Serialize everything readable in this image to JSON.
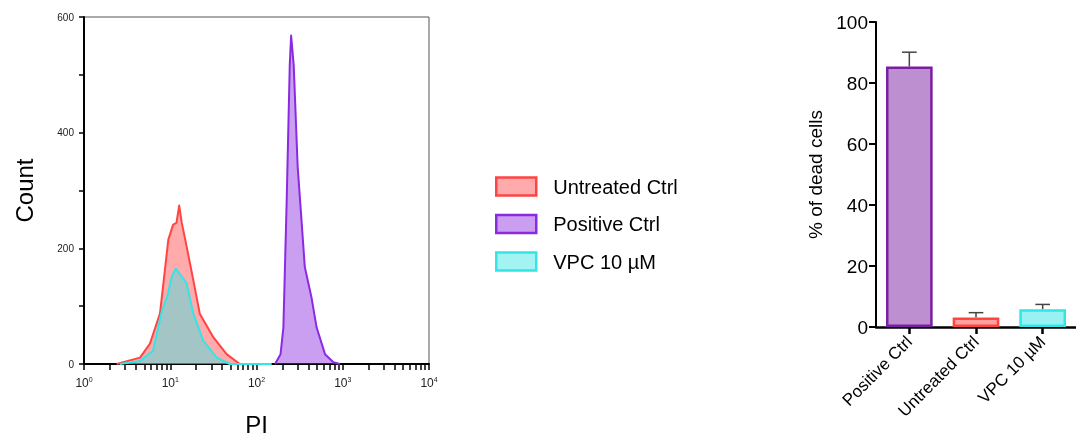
{
  "chart_data": [
    {
      "type": "area",
      "xlabel": "PI",
      "ylabel": "Count",
      "log": "x",
      "xlim": [
        1,
        10000
      ],
      "ylim": [
        0,
        600
      ],
      "xticks": [
        {
          "value": 1,
          "label": "10$^{0}$"
        },
        {
          "value": 2,
          "label": null
        },
        {
          "value": 3,
          "label": null
        },
        {
          "value": 4,
          "label": null
        },
        {
          "value": 5,
          "label": null
        },
        {
          "value": 6,
          "label": null
        },
        {
          "value": 7,
          "label": null
        },
        {
          "value": 8,
          "label": null
        },
        {
          "value": 9,
          "label": null
        },
        {
          "value": 10,
          "label": "10$^{1}$"
        },
        {
          "value": 20,
          "label": null
        },
        {
          "value": 30,
          "label": null
        },
        {
          "value": 40,
          "label": null
        },
        {
          "value": 50,
          "label": null
        },
        {
          "value": 60,
          "label": null
        },
        {
          "value": 70,
          "label": null
        },
        {
          "value": 80,
          "label": null
        },
        {
          "value": 90,
          "label": null
        },
        {
          "value": 100,
          "label": "10$^{2}$"
        },
        {
          "value": 200,
          "label": null
        },
        {
          "value": 300,
          "label": null
        },
        {
          "value": 400,
          "label": null
        },
        {
          "value": 500,
          "label": null
        },
        {
          "value": 600,
          "label": null
        },
        {
          "value": 700,
          "label": null
        },
        {
          "value": 800,
          "label": null
        },
        {
          "value": 900,
          "label": null
        },
        {
          "value": 1000,
          "label": "10$^{3}$"
        },
        {
          "value": 2000,
          "label": null
        },
        {
          "value": 3000,
          "label": null
        },
        {
          "value": 4000,
          "label": null
        },
        {
          "value": 5000,
          "label": null
        },
        {
          "value": 6000,
          "label": null
        },
        {
          "value": 7000,
          "label": null
        },
        {
          "value": 8000,
          "label": null
        },
        {
          "value": 9000,
          "label": null
        },
        {
          "value": 10000,
          "label": "10$^{4}$"
        }
      ],
      "yticks": [
        0,
        {
          "value": 100,
          "label": null
        },
        200,
        {
          "value": 300,
          "label": null
        },
        400,
        {
          "value": 500,
          "label": null
        },
        600
      ],
      "grid": false,
      "legend": "right",
      "series": [
        {
          "name": "Untreated Ctrl",
          "color": "#ff4444",
          "x": [
            2.39,
            4.46,
            5.8,
            7.6,
            9.5,
            10.8,
            11.8,
            12.7,
            13.6,
            15.5,
            18.5,
            22,
            31.7,
            45,
            64
          ],
          "values": [
            0,
            11,
            35,
            87,
            215,
            241,
            244,
            274,
            244,
            203,
            145,
            87,
            46,
            17,
            0
          ]
        },
        {
          "name": "Positive Ctrl",
          "color": "#8a2be2",
          "x": [
            164,
            190,
            205,
            224,
            243,
            252,
            270,
            300,
            363,
            433,
            498,
            623,
            779,
            930
          ],
          "values": [
            0,
            17,
            63,
            284,
            517,
            568,
            517,
            342,
            168,
            116,
            63,
            17,
            3,
            0
          ]
        },
        {
          "name": "VPC 10 µM",
          "color": "#33e5e5",
          "x": [
            2.6,
            4.46,
            6.3,
            8,
            9.2,
            10.4,
            11.6,
            12.9,
            15.5,
            18.5,
            24.2,
            34.6,
            49,
            150
          ],
          "values": [
            0,
            5,
            23,
            92,
            116,
            151,
            165,
            156,
            139,
            87,
            40,
            11,
            0,
            0
          ]
        }
      ]
    },
    {
      "type": "bar",
      "ylabel": "% of dead cells",
      "categories": [
        "Positive Ctrl",
        "Untreated Ctrl",
        "VPC 10 µM"
      ],
      "values": [
        85.4,
        3.1,
        5.8
      ],
      "colors": [
        "#7b1fa2",
        "#ff4444",
        "#33e5e5"
      ],
      "errors": [
        [
          85.4,
          90.1
        ],
        [
          3.1,
          4.7
        ],
        [
          5.8,
          7.4
        ]
      ],
      "ylim": [
        0,
        100
      ],
      "yticks": [
        0,
        20,
        40,
        60,
        80,
        100
      ],
      "grid": false
    }
  ]
}
